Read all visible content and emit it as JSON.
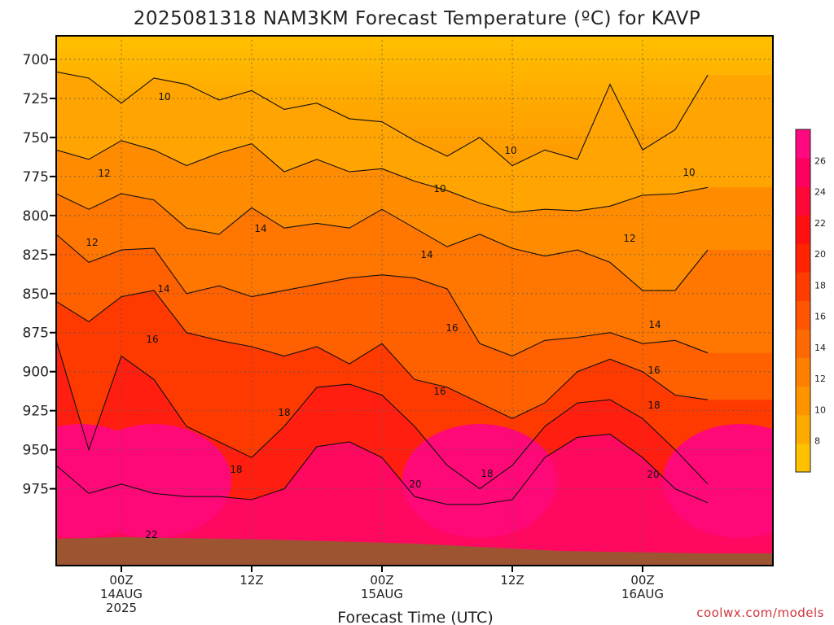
{
  "page": {
    "title": "2025081318 NAM3KM Forecast Temperature (ºC) for KAVP",
    "credit": "coolwx.com/models"
  },
  "chart_data": {
    "type": "heatmap",
    "title": "2025081318 NAM3KM Forecast Temperature (ºC) for KAVP",
    "xlabel": "Forecast Time (UTC)",
    "ylabel": "",
    "x_ticks": [
      {
        "lines": [
          "00Z",
          "14AUG",
          "2025"
        ]
      },
      {
        "lines": [
          "12Z"
        ]
      },
      {
        "lines": [
          "00Z",
          "15AUG"
        ]
      },
      {
        "lines": [
          "12Z"
        ]
      },
      {
        "lines": [
          "00Z",
          "16AUG"
        ]
      }
    ],
    "xlim": [
      "2025-08-13 18Z",
      "2025-08-16 12Z"
    ],
    "y_ticks": [
      700,
      725,
      750,
      775,
      800,
      825,
      850,
      875,
      900,
      925,
      950,
      975
    ],
    "ylim": [
      688,
      990
    ],
    "y_scale": "pressure (inverted)",
    "grid": true,
    "colorbar": {
      "ticks": [
        8,
        10,
        12,
        14,
        16,
        18,
        20,
        22,
        24,
        26
      ],
      "range": [
        6,
        28
      ],
      "colors": [
        "#ffc000",
        "#ffaa00",
        "#ff9400",
        "#ff8000",
        "#ff6a00",
        "#ff5400",
        "#ff3c00",
        "#ff2400",
        "#ff1010",
        "#ff0838",
        "#ff0060",
        "#ff0880"
      ]
    },
    "contour_labels": [
      "10",
      "10",
      "10",
      "10",
      "12",
      "12",
      "12",
      "14",
      "14",
      "14",
      "14",
      "16",
      "16",
      "16",
      "16",
      "18",
      "18",
      "18",
      "18",
      "20",
      "20",
      "22",
      "22",
      "22"
    ],
    "series": [
      {
        "level": 10,
        "points": [
          [
            "13/18Z",
            708
          ],
          [
            "13/21Z",
            712
          ],
          [
            "14/00Z",
            728
          ],
          [
            "14/03Z",
            712
          ],
          [
            "14/06Z",
            716
          ],
          [
            "14/09Z",
            726
          ],
          [
            "14/12Z",
            720
          ],
          [
            "14/15Z",
            732
          ],
          [
            "14/18Z",
            728
          ],
          [
            "14/21Z",
            738
          ],
          [
            "15/00Z",
            740
          ],
          [
            "15/03Z",
            752
          ],
          [
            "15/06Z",
            762
          ],
          [
            "15/09Z",
            750
          ],
          [
            "15/12Z",
            768
          ],
          [
            "15/15Z",
            758
          ],
          [
            "15/18Z",
            764
          ],
          [
            "15/21Z",
            716
          ],
          [
            "16/00Z",
            758
          ],
          [
            "16/03Z",
            745
          ],
          [
            "16/06Z",
            710
          ]
        ]
      },
      {
        "level": 12,
        "points": [
          [
            "13/18Z",
            758
          ],
          [
            "13/21Z",
            764
          ],
          [
            "14/00Z",
            752
          ],
          [
            "14/03Z",
            758
          ],
          [
            "14/06Z",
            768
          ],
          [
            "14/09Z",
            760
          ],
          [
            "14/12Z",
            754
          ],
          [
            "14/15Z",
            772
          ],
          [
            "14/18Z",
            764
          ],
          [
            "14/21Z",
            772
          ],
          [
            "15/00Z",
            770
          ],
          [
            "15/03Z",
            778
          ],
          [
            "15/06Z",
            784
          ],
          [
            "15/09Z",
            792
          ],
          [
            "15/12Z",
            798
          ],
          [
            "15/15Z",
            796
          ],
          [
            "15/18Z",
            797
          ],
          [
            "15/21Z",
            794
          ],
          [
            "16/00Z",
            787
          ],
          [
            "16/03Z",
            786
          ],
          [
            "16/06Z",
            782
          ]
        ]
      },
      {
        "level": 14,
        "points": [
          [
            "13/18Z",
            786
          ],
          [
            "13/21Z",
            796
          ],
          [
            "14/00Z",
            786
          ],
          [
            "14/03Z",
            790
          ],
          [
            "14/06Z",
            808
          ],
          [
            "14/09Z",
            812
          ],
          [
            "14/12Z",
            795
          ],
          [
            "14/15Z",
            808
          ],
          [
            "14/18Z",
            805
          ],
          [
            "14/21Z",
            808
          ],
          [
            "15/00Z",
            796
          ],
          [
            "15/03Z",
            808
          ],
          [
            "15/06Z",
            820
          ],
          [
            "15/09Z",
            812
          ],
          [
            "15/12Z",
            821
          ],
          [
            "15/15Z",
            826
          ],
          [
            "15/18Z",
            822
          ],
          [
            "15/21Z",
            830
          ],
          [
            "16/00Z",
            848
          ],
          [
            "16/03Z",
            848
          ],
          [
            "16/06Z",
            822
          ]
        ]
      },
      {
        "level": 16,
        "points": [
          [
            "13/18Z",
            812
          ],
          [
            "13/21Z",
            830
          ],
          [
            "14/00Z",
            822
          ],
          [
            "14/03Z",
            821
          ],
          [
            "14/06Z",
            850
          ],
          [
            "14/09Z",
            845
          ],
          [
            "14/12Z",
            852
          ],
          [
            "14/15Z",
            848
          ],
          [
            "14/18Z",
            844
          ],
          [
            "14/21Z",
            840
          ],
          [
            "15/00Z",
            838
          ],
          [
            "15/03Z",
            840
          ],
          [
            "15/06Z",
            847
          ],
          [
            "15/09Z",
            882
          ],
          [
            "15/12Z",
            890
          ],
          [
            "15/15Z",
            880
          ],
          [
            "15/18Z",
            878
          ],
          [
            "15/21Z",
            875
          ],
          [
            "16/00Z",
            882
          ],
          [
            "16/03Z",
            880
          ],
          [
            "16/06Z",
            888
          ]
        ]
      },
      {
        "level": 18,
        "points": [
          [
            "13/18Z",
            855
          ],
          [
            "13/21Z",
            868
          ],
          [
            "14/00Z",
            852
          ],
          [
            "14/03Z",
            848
          ],
          [
            "14/06Z",
            875
          ],
          [
            "14/09Z",
            880
          ],
          [
            "14/12Z",
            884
          ],
          [
            "14/15Z",
            890
          ],
          [
            "14/18Z",
            884
          ],
          [
            "14/21Z",
            895
          ],
          [
            "15/00Z",
            882
          ],
          [
            "15/03Z",
            905
          ],
          [
            "15/06Z",
            910
          ],
          [
            "15/09Z",
            920
          ],
          [
            "15/12Z",
            930
          ],
          [
            "15/15Z",
            920
          ],
          [
            "15/18Z",
            900
          ],
          [
            "15/21Z",
            892
          ],
          [
            "16/00Z",
            900
          ],
          [
            "16/03Z",
            915
          ],
          [
            "16/06Z",
            918
          ]
        ]
      },
      {
        "level": 20,
        "points": [
          [
            "13/18Z",
            880
          ],
          [
            "13/21Z",
            950
          ],
          [
            "14/00Z",
            890
          ],
          [
            "14/03Z",
            905
          ],
          [
            "14/06Z",
            935
          ],
          [
            "14/09Z",
            945
          ],
          [
            "14/12Z",
            955
          ],
          [
            "14/15Z",
            935
          ],
          [
            "14/18Z",
            910
          ],
          [
            "14/21Z",
            908
          ],
          [
            "15/00Z",
            915
          ],
          [
            "15/03Z",
            935
          ],
          [
            "15/06Z",
            960
          ],
          [
            "15/09Z",
            975
          ],
          [
            "15/12Z",
            960
          ],
          [
            "15/15Z",
            935
          ],
          [
            "15/18Z",
            920
          ],
          [
            "15/21Z",
            918
          ],
          [
            "16/00Z",
            930
          ],
          [
            "16/03Z",
            950
          ],
          [
            "16/06Z",
            972
          ]
        ]
      },
      {
        "level": 22,
        "points": [
          [
            "13/18Z",
            960
          ],
          [
            "13/21Z",
            978
          ],
          [
            "14/00Z",
            972
          ],
          [
            "14/03Z",
            978
          ],
          [
            "14/06Z",
            980
          ],
          [
            "14/09Z",
            980
          ],
          [
            "14/12Z",
            982
          ],
          [
            "14/15Z",
            975
          ],
          [
            "14/18Z",
            948
          ],
          [
            "14/21Z",
            945
          ],
          [
            "15/00Z",
            955
          ],
          [
            "15/03Z",
            980
          ],
          [
            "15/06Z",
            985
          ],
          [
            "15/09Z",
            985
          ],
          [
            "15/12Z",
            982
          ],
          [
            "15/15Z",
            955
          ],
          [
            "15/18Z",
            942
          ],
          [
            "15/21Z",
            940
          ],
          [
            "16/00Z",
            955
          ],
          [
            "16/03Z",
            975
          ],
          [
            "16/06Z",
            984
          ]
        ]
      }
    ],
    "terrain_color": "#9c5530"
  }
}
